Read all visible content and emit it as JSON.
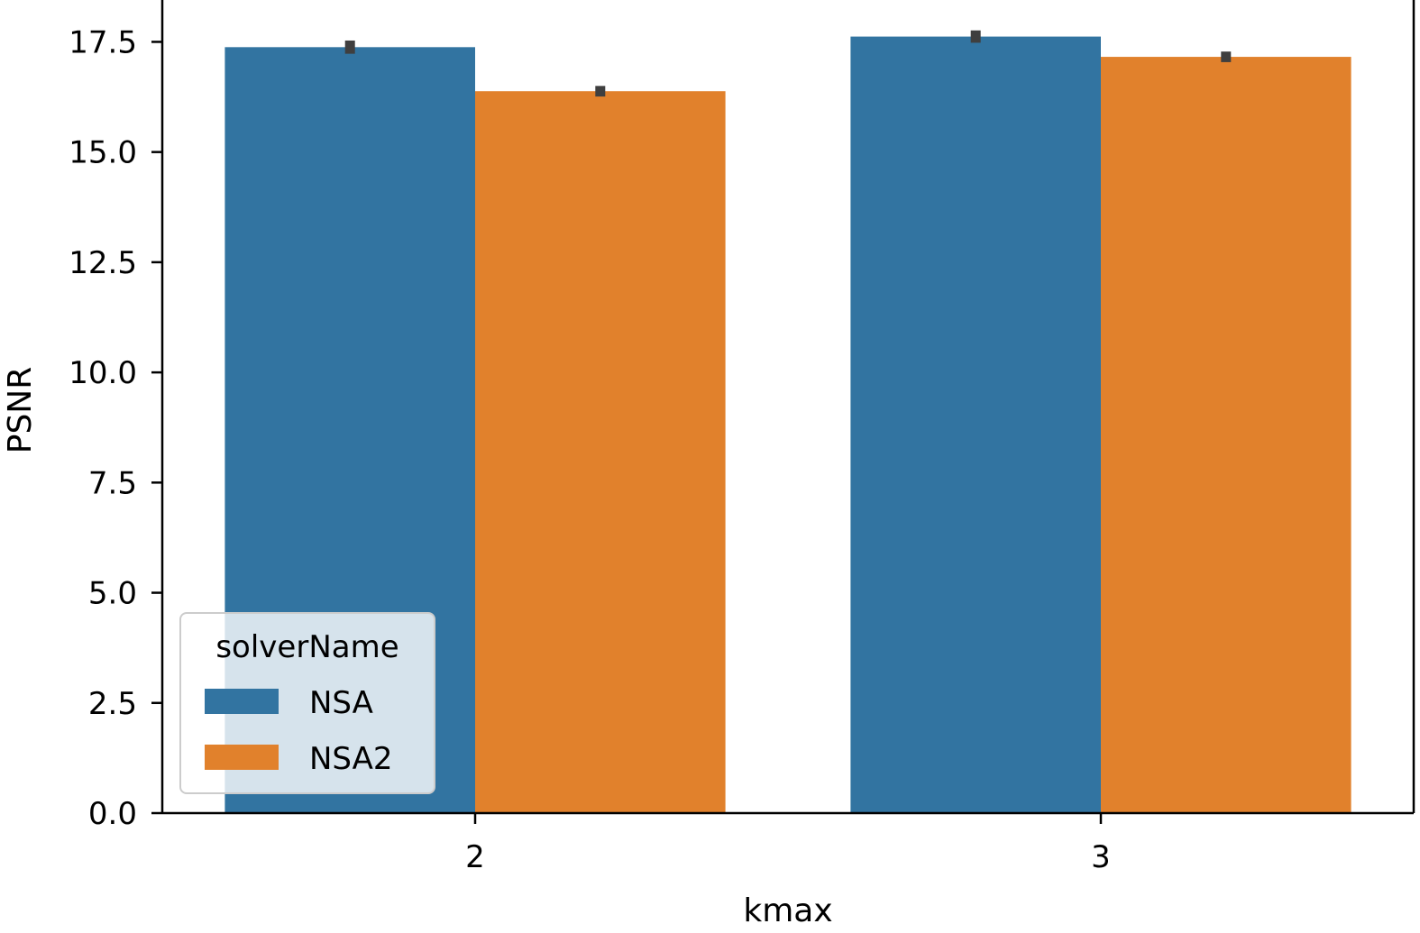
{
  "chart_data": {
    "type": "bar",
    "title": "",
    "xlabel": "kmax",
    "ylabel": "PSNR",
    "categories": [
      "2",
      "3"
    ],
    "series": [
      {
        "name": "NSA",
        "color": "#3274a1",
        "values": [
          17.38,
          17.62
        ],
        "error": [
          0.15,
          0.14
        ]
      },
      {
        "name": "NSA2",
        "color": "#e1812c",
        "values": [
          16.38,
          17.16
        ],
        "error": [
          0.12,
          0.12
        ]
      }
    ],
    "ylim": [
      0,
      18.45
    ],
    "yticks": [
      0.0,
      2.5,
      5.0,
      7.5,
      10.0,
      12.5,
      15.0,
      17.5
    ],
    "ytick_labels": [
      "0.0",
      "2.5",
      "5.0",
      "7.5",
      "10.0",
      "12.5",
      "15.0",
      "17.5"
    ],
    "grid": false,
    "legend": {
      "title": "solverName",
      "placement": "lower-left"
    }
  }
}
